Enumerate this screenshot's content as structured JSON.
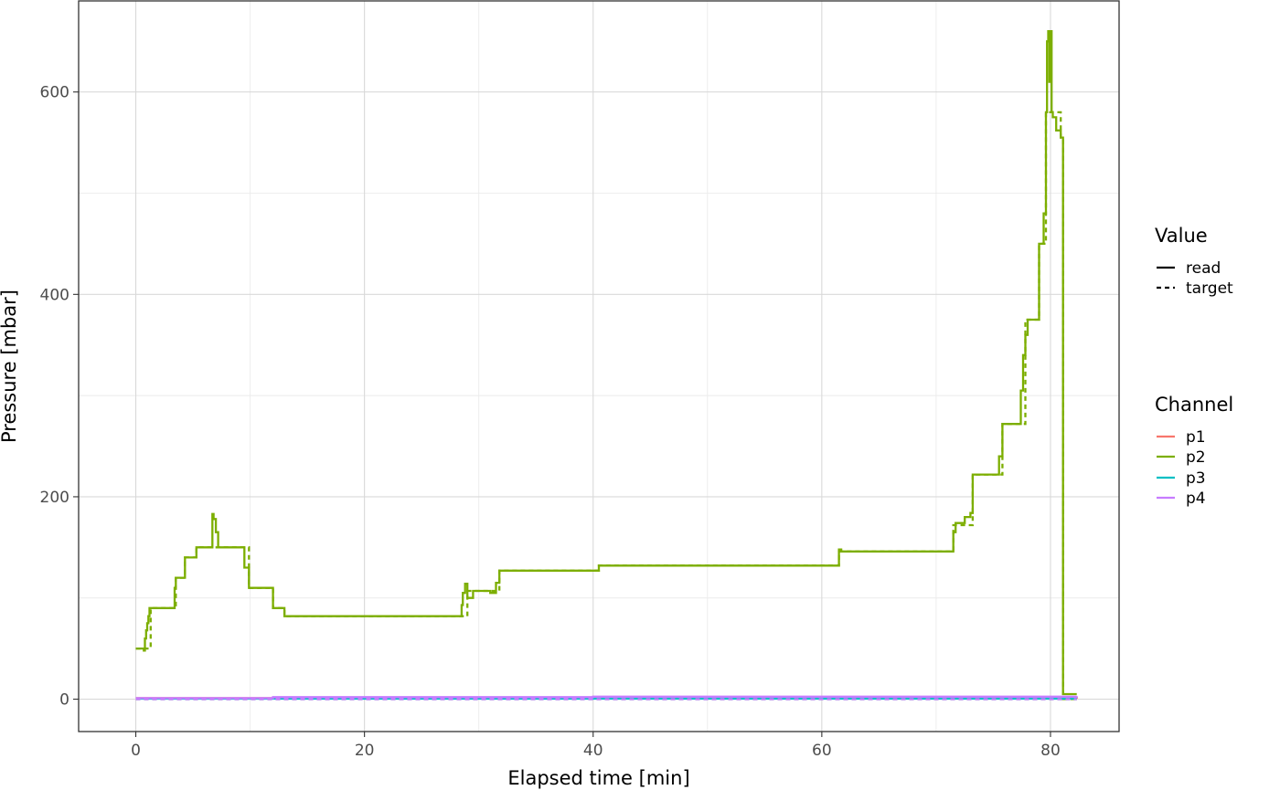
{
  "chart_data": {
    "type": "line",
    "xlabel": "Elapsed time [min]",
    "ylabel": "Pressure [mbar]",
    "xlim": [
      -5,
      86
    ],
    "ylim": [
      -32,
      690
    ],
    "x_ticks": [
      0,
      20,
      40,
      60,
      80
    ],
    "y_ticks": [
      0,
      200,
      400,
      600
    ],
    "grid": true,
    "legend_position": "right",
    "legends": [
      {
        "title": "Value",
        "entries": [
          {
            "label": "read",
            "style": "solid"
          },
          {
            "label": "target",
            "style": "dashed"
          }
        ]
      },
      {
        "title": "Channel",
        "entries": [
          {
            "label": "p1",
            "color": "#F8766D"
          },
          {
            "label": "p2",
            "color": "#7CAE00"
          },
          {
            "label": "p3",
            "color": "#00BFC4"
          },
          {
            "label": "p4",
            "color": "#C77CFF"
          }
        ]
      }
    ],
    "series": [
      {
        "channel": "p2",
        "value": "read",
        "color": "#7CAE00",
        "step": true,
        "x": [
          0,
          0.7,
          0.8,
          0.9,
          1.0,
          1.1,
          1.2,
          1.3,
          3.4,
          3.5,
          4.3,
          5.3,
          5.6,
          6.7,
          6.8,
          7.0,
          7.2,
          9.5,
          9.9,
          12.0,
          13.0,
          28.5,
          28.6,
          28.8,
          29.0,
          29.5,
          31.0,
          31.5,
          31.8,
          40.5,
          61.5,
          61.7,
          71.5,
          71.7,
          72.5,
          73.0,
          73.2,
          75.5,
          75.8,
          77.4,
          77.6,
          77.8,
          78.0,
          79.0,
          79.4,
          79.6,
          79.7,
          79.8,
          79.9,
          80.0,
          80.1,
          80.2,
          80.5,
          80.9,
          81.1,
          82.3
        ],
        "y": [
          50,
          48,
          60,
          68,
          75,
          82,
          90,
          90,
          110,
          120,
          140,
          150,
          150,
          183,
          178,
          165,
          150,
          130,
          110,
          90,
          82,
          93,
          105,
          114,
          100,
          107,
          105,
          115,
          127,
          132,
          148,
          146,
          165,
          174,
          180,
          184,
          222,
          240,
          272,
          305,
          340,
          360,
          375,
          450,
          480,
          580,
          650,
          660,
          610,
          660,
          580,
          575,
          562,
          555,
          5,
          5
        ]
      },
      {
        "channel": "p2",
        "value": "target",
        "color": "#7CAE00",
        "step": true,
        "x": [
          0,
          1.3,
          3.5,
          4.3,
          5.3,
          7.2,
          9.9,
          12.0,
          13.0,
          28.5,
          29.0,
          31.8,
          40.5,
          61.5,
          71.5,
          73.2,
          75.8,
          77.8,
          79.0,
          79.6,
          80.2,
          80.9,
          81.1,
          82.3
        ],
        "y": [
          50,
          90,
          120,
          140,
          150,
          150,
          110,
          90,
          82,
          82,
          107,
          127,
          132,
          146,
          172,
          222,
          272,
          375,
          450,
          580,
          580,
          555,
          0,
          0
        ]
      },
      {
        "channel": "p1",
        "value": "read",
        "color": "#F8766D",
        "step": true,
        "x": [
          0,
          40,
          82.3
        ],
        "y": [
          1,
          1.5,
          2
        ]
      },
      {
        "channel": "p1",
        "value": "target",
        "color": "#F8766D",
        "step": true,
        "x": [
          0,
          82.3
        ],
        "y": [
          0,
          0
        ]
      },
      {
        "channel": "p3",
        "value": "read",
        "color": "#00BFC4",
        "step": true,
        "x": [
          0,
          82.3
        ],
        "y": [
          0.5,
          0.5
        ]
      },
      {
        "channel": "p3",
        "value": "target",
        "color": "#00BFC4",
        "step": true,
        "x": [
          0,
          82.3
        ],
        "y": [
          0,
          0
        ]
      },
      {
        "channel": "p4",
        "value": "read",
        "color": "#C77CFF",
        "step": true,
        "x": [
          0,
          12,
          40,
          82.3
        ],
        "y": [
          1,
          2,
          2.5,
          3
        ]
      },
      {
        "channel": "p4",
        "value": "target",
        "color": "#C77CFF",
        "step": true,
        "x": [
          0,
          82.3
        ],
        "y": [
          0,
          0
        ]
      }
    ]
  }
}
